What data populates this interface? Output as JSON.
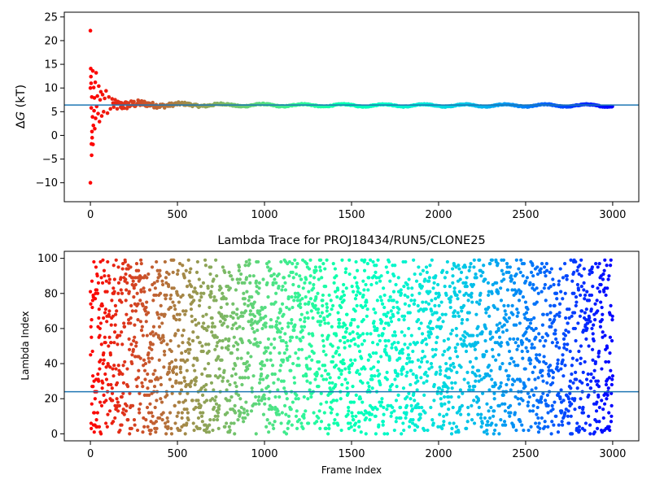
{
  "chart_data": [
    {
      "type": "scatter",
      "title": "",
      "xlabel": "",
      "ylabel": "ΔG (kT)",
      "ylabel_parts": {
        "delta": "Δ",
        "var": "G",
        "unit": " (kT)"
      },
      "xlim": [
        -150,
        3150
      ],
      "ylim": [
        -14,
        26
      ],
      "xticks": [
        0,
        500,
        1000,
        1500,
        2000,
        2500,
        3000
      ],
      "yticks": [
        -10,
        -5,
        0,
        5,
        10,
        15,
        20,
        25
      ],
      "ytick_labels": [
        "−10",
        "−5",
        "0",
        "5",
        "10",
        "15",
        "20",
        "25"
      ],
      "hline": 6.4,
      "hline_color": "#1f77b4",
      "colormap": "rainbow",
      "n_frames": 3000,
      "converged_value": 6.3,
      "early_points": [
        {
          "x": 0,
          "y": 22.1
        },
        {
          "x": 0,
          "y": 10.0
        },
        {
          "x": 0,
          "y": -10.0
        },
        {
          "x": 2,
          "y": 14.1
        },
        {
          "x": 3,
          "y": 12.4
        },
        {
          "x": 4,
          "y": 11.0
        },
        {
          "x": 5,
          "y": 5.8
        },
        {
          "x": 6,
          "y": -1.8
        },
        {
          "x": 7,
          "y": -4.2
        },
        {
          "x": 8,
          "y": 8.1
        },
        {
          "x": 9,
          "y": 0.8
        },
        {
          "x": 10,
          "y": -0.5
        },
        {
          "x": 12,
          "y": 3.9
        },
        {
          "x": 14,
          "y": 13.6
        },
        {
          "x": 15,
          "y": -1.9
        },
        {
          "x": 17,
          "y": 2.1
        },
        {
          "x": 19,
          "y": 10.1
        },
        {
          "x": 21,
          "y": 5.2
        },
        {
          "x": 23,
          "y": 7.9
        },
        {
          "x": 25,
          "y": 1.4
        },
        {
          "x": 28,
          "y": 11.2
        },
        {
          "x": 30,
          "y": 3.6
        },
        {
          "x": 33,
          "y": 13.2
        },
        {
          "x": 36,
          "y": 6.1
        },
        {
          "x": 40,
          "y": 8.3
        },
        {
          "x": 44,
          "y": 4.6
        },
        {
          "x": 48,
          "y": 10.4
        },
        {
          "x": 52,
          "y": 2.9
        },
        {
          "x": 56,
          "y": 7.5
        },
        {
          "x": 60,
          "y": 9.2
        },
        {
          "x": 65,
          "y": 4.1
        },
        {
          "x": 70,
          "y": 8.6
        },
        {
          "x": 76,
          "y": 5.0
        },
        {
          "x": 82,
          "y": 7.8
        },
        {
          "x": 90,
          "y": 9.4
        },
        {
          "x": 98,
          "y": 4.7
        },
        {
          "x": 106,
          "y": 8.1
        },
        {
          "x": 115,
          "y": 5.6
        },
        {
          "x": 125,
          "y": 7.7
        }
      ]
    },
    {
      "type": "scatter",
      "title": "Lambda Trace for PROJ18434/RUN5/CLONE25",
      "xlabel": "Frame Index",
      "ylabel": "Lambda Index",
      "xlim": [
        -150,
        3150
      ],
      "ylim": [
        -4,
        104
      ],
      "xticks": [
        0,
        500,
        1000,
        1500,
        2000,
        2500,
        3000
      ],
      "yticks": [
        0,
        20,
        40,
        60,
        80,
        100
      ],
      "ytick_labels": [
        "0",
        "20",
        "40",
        "60",
        "80",
        "100"
      ],
      "hline": 24,
      "hline_color": "#1f77b4",
      "colormap": "rainbow",
      "n_frames": 3000,
      "lambda_range": [
        0,
        99
      ]
    }
  ]
}
